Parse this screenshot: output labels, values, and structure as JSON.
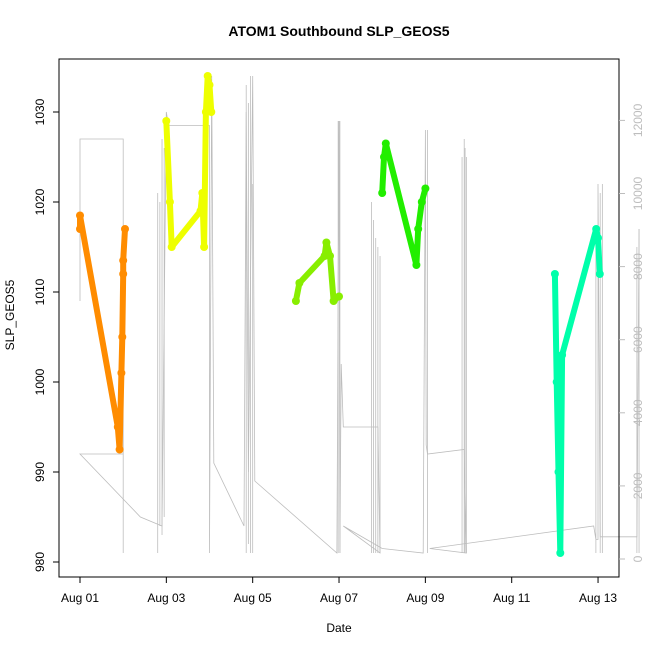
{
  "chart_data": {
    "type": "line",
    "title": "ATOM1 Southbound SLP_GEOS5",
    "xlabel": "Date",
    "ylabel": "SLP_GEOS5",
    "x_date_range": [
      "2015-08-01",
      "2015-08-13"
    ],
    "x_ticks": [
      "Aug 01",
      "Aug 03",
      "Aug 05",
      "Aug 07",
      "Aug 09",
      "Aug 11",
      "Aug 13"
    ],
    "ylim": [
      980,
      1035
    ],
    "y_ticks": [
      980,
      990,
      1000,
      1010,
      1020,
      1030
    ],
    "y2lim": [
      0,
      13000
    ],
    "y2_ticks": [
      0,
      2000,
      4000,
      6000,
      8000,
      10000,
      12000
    ],
    "grid": false,
    "colors": {
      "orange": "#FF8C00",
      "yellow": "#EEFF00",
      "green_yellow": "#88EE00",
      "green": "#22EE00",
      "aquamarine": "#00FFAA",
      "background_trace": "#bdbdbd"
    },
    "series": [
      {
        "color": "#FF8C00",
        "points": [
          [
            "2015-08-01",
            1017
          ],
          [
            "2015-08-01",
            1018.5
          ],
          [
            "2015-08-01T21:00",
            995
          ],
          [
            "2015-08-01T22:00",
            992.5
          ],
          [
            "2015-08-01T23:00",
            1001
          ],
          [
            "2015-08-01T23:30",
            1005
          ],
          [
            "2015-08-02",
            1012
          ],
          [
            "2015-08-02",
            1013.5
          ],
          [
            "2015-08-02T01:00",
            1017
          ]
        ]
      },
      {
        "color": "#EEFF00",
        "points": [
          [
            "2015-08-03",
            1029
          ],
          [
            "2015-08-03T02:00",
            1020
          ],
          [
            "2015-08-03T03:00",
            1015
          ],
          [
            "2015-08-03T19:00",
            1019
          ],
          [
            "2015-08-03T20:00",
            1021
          ],
          [
            "2015-08-03T21:00",
            1015
          ],
          [
            "2015-08-03T22:00",
            1030
          ],
          [
            "2015-08-03T23:00",
            1034
          ],
          [
            "2015-08-04",
            1033
          ],
          [
            "2015-08-04T01:00",
            1030
          ]
        ]
      },
      {
        "color": "#88EE00",
        "points": [
          [
            "2015-08-06",
            1009
          ],
          [
            "2015-08-06T02:00",
            1011
          ],
          [
            "2015-08-06T16:00",
            1014
          ],
          [
            "2015-08-06T17:00",
            1015.5
          ],
          [
            "2015-08-06T19:00",
            1014
          ],
          [
            "2015-08-06T21:00",
            1009
          ],
          [
            "2015-08-07",
            1009.5
          ]
        ]
      },
      {
        "color": "#22EE00",
        "points": [
          [
            "2015-08-08",
            1021
          ],
          [
            "2015-08-08T01:00",
            1025
          ],
          [
            "2015-08-08T02:00",
            1026.5
          ],
          [
            "2015-08-08T19:00",
            1013
          ],
          [
            "2015-08-08T20:00",
            1017
          ],
          [
            "2015-08-08T22:00",
            1020
          ],
          [
            "2015-08-09",
            1021.5
          ]
        ]
      },
      {
        "color": "#00FFAA",
        "points": [
          [
            "2015-08-12",
            1012
          ],
          [
            "2015-08-12T01:00",
            1000
          ],
          [
            "2015-08-12T02:00",
            990
          ],
          [
            "2015-08-12T03:00",
            981
          ],
          [
            "2015-08-12T04:00",
            1003
          ],
          [
            "2015-08-12T23:00",
            1017
          ],
          [
            "2015-08-13",
            1016
          ],
          [
            "2015-08-13T01:00",
            1012
          ]
        ]
      }
    ]
  }
}
